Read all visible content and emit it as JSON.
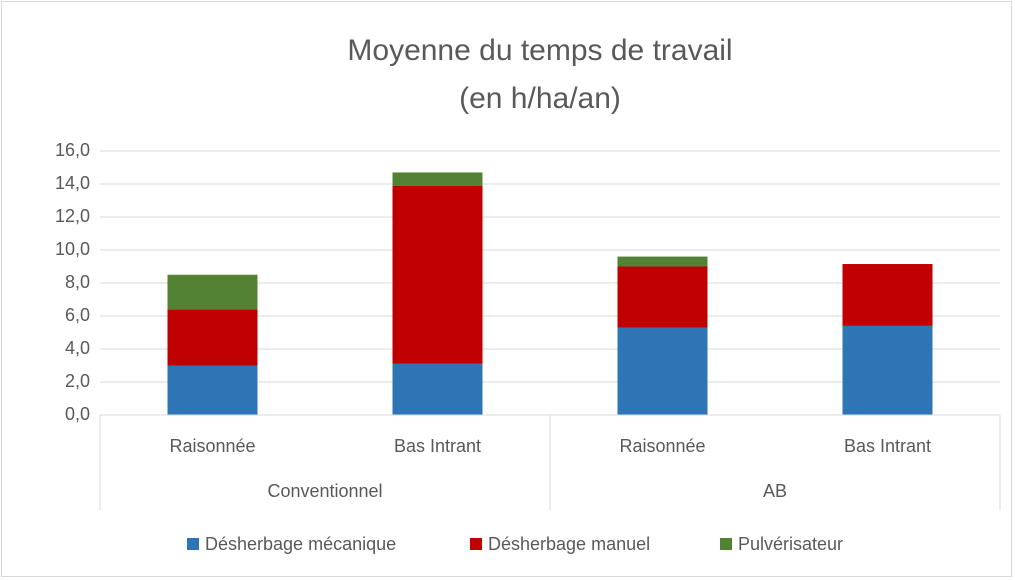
{
  "chart_data": {
    "type": "stacked_bar",
    "title": "Moyenne du temps de travail",
    "subtitle": "(en h/ha/an)",
    "groups": [
      {
        "name": "Conventionnel",
        "categories": [
          "Raisonnée",
          "Bas Intrant"
        ]
      },
      {
        "name": "AB",
        "categories": [
          "Raisonnée",
          "Bas Intrant"
        ]
      }
    ],
    "series": [
      {
        "name": "Désherbage mécanique",
        "color": "#2e75b6",
        "values": [
          3.0,
          3.1,
          5.3,
          5.4
        ]
      },
      {
        "name": "Désherbage manuel",
        "color": "#c00000",
        "values": [
          3.4,
          10.8,
          3.7,
          3.75
        ]
      },
      {
        "name": "Pulvérisateur",
        "color": "#548235",
        "values": [
          2.1,
          0.8,
          0.6,
          0
        ]
      }
    ],
    "ylim": [
      0,
      16
    ],
    "yticks": [
      {
        "value": 0,
        "label": "0,0"
      },
      {
        "value": 2,
        "label": "2,0"
      },
      {
        "value": 4,
        "label": "4,0"
      },
      {
        "value": 6,
        "label": "6,0"
      },
      {
        "value": 8,
        "label": "8,0"
      },
      {
        "value": 10,
        "label": "10,0"
      },
      {
        "value": 12,
        "label": "12,0"
      },
      {
        "value": 14,
        "label": "14,0"
      },
      {
        "value": 16,
        "label": "16,0"
      }
    ],
    "grid": true,
    "legend": "bottom"
  }
}
